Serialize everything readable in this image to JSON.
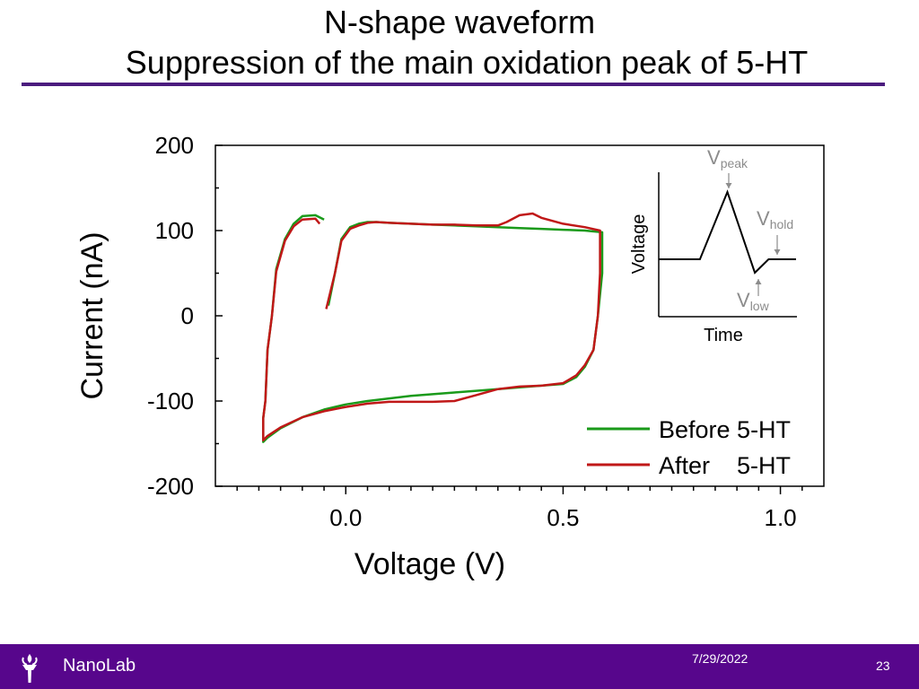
{
  "slide": {
    "title_line1": "N-shape waveform",
    "title_line2": "Suppression of the main oxidation peak of 5-HT",
    "accent_color": "#57068c"
  },
  "footer": {
    "lab_name": "NanoLab",
    "date": "7/29/2022",
    "page_number": "23",
    "logo_icon": "torch-icon"
  },
  "chart_data": [
    {
      "type": "line",
      "xlabel": "Voltage (V)",
      "ylabel": "Current (nA)",
      "xlim": [
        -0.3,
        1.1
      ],
      "ylim": [
        -200,
        200
      ],
      "x_ticks": [
        0.0,
        0.5,
        1.0
      ],
      "x_tick_labels": [
        "0.0",
        "0.5",
        "1.0"
      ],
      "y_ticks": [
        200,
        100,
        0,
        -100,
        -200
      ],
      "y_tick_labels": [
        "200",
        "100",
        "0",
        "-100",
        "-200"
      ],
      "grid": false,
      "legend_position": "bottom-right",
      "series": [
        {
          "name": "Before 5-HT",
          "color": "#1a9a1a",
          "x": [
            -0.05,
            -0.07,
            -0.1,
            -0.12,
            -0.14,
            -0.16,
            -0.17,
            -0.18,
            -0.185,
            -0.19,
            -0.19,
            -0.18,
            -0.15,
            -0.1,
            -0.05,
            0.0,
            0.05,
            0.1,
            0.15,
            0.2,
            0.25,
            0.3,
            0.35,
            0.4,
            0.45,
            0.5,
            0.53,
            0.55,
            0.57,
            0.58,
            0.59,
            0.59,
            0.55,
            0.5,
            0.45,
            0.4,
            0.35,
            0.3,
            0.25,
            0.2,
            0.15,
            0.1,
            0.07,
            0.05,
            0.03,
            0.01,
            -0.01,
            -0.025,
            -0.04
          ],
          "y": [
            113,
            118,
            117,
            108,
            90,
            55,
            0,
            -40,
            -100,
            -120,
            -148,
            -143,
            -132,
            -119,
            -110,
            -104,
            -100,
            -97,
            -94,
            -92,
            -90,
            -88,
            -86,
            -84,
            -82,
            -80,
            -72,
            -60,
            -40,
            0,
            50,
            98,
            100,
            101,
            102,
            103,
            104,
            105,
            106,
            107,
            108,
            109,
            110,
            110,
            108,
            104,
            90,
            50,
            12
          ]
        },
        {
          "name": "After    5-HT",
          "color": "#c01818",
          "x": [
            -0.06,
            -0.07,
            -0.1,
            -0.12,
            -0.14,
            -0.16,
            -0.17,
            -0.18,
            -0.185,
            -0.19,
            -0.19,
            -0.18,
            -0.15,
            -0.1,
            -0.05,
            0.0,
            0.05,
            0.1,
            0.15,
            0.2,
            0.25,
            0.3,
            0.35,
            0.4,
            0.45,
            0.5,
            0.53,
            0.55,
            0.57,
            0.58,
            0.585,
            0.585,
            0.55,
            0.5,
            0.45,
            0.43,
            0.4,
            0.37,
            0.35,
            0.3,
            0.25,
            0.2,
            0.15,
            0.1,
            0.07,
            0.05,
            0.03,
            0.01,
            -0.01,
            -0.025,
            -0.045
          ],
          "y": [
            108,
            114,
            113,
            105,
            88,
            52,
            0,
            -40,
            -100,
            -120,
            -146,
            -141,
            -131,
            -119,
            -112,
            -107,
            -103,
            -101,
            -101,
            -101,
            -100,
            -93,
            -86,
            -83,
            -82,
            -79,
            -70,
            -58,
            -40,
            0,
            50,
            100,
            104,
            108,
            115,
            120,
            118,
            110,
            106,
            106,
            107,
            107,
            108,
            109,
            110,
            109,
            106,
            102,
            88,
            50,
            8
          ]
        }
      ]
    },
    {
      "type": "line",
      "xlabel": "Time",
      "ylabel": "Voltage",
      "annotations": [
        {
          "main": "V",
          "sub": "peak"
        },
        {
          "main": "V",
          "sub": "hold"
        },
        {
          "main": "V",
          "sub": "low"
        }
      ],
      "series": [
        {
          "name": "",
          "color": "#000000",
          "x": [
            0,
            3,
            5,
            7,
            8,
            10
          ],
          "y": [
            0,
            0,
            1,
            -0.2,
            0,
            0
          ]
        }
      ]
    }
  ]
}
